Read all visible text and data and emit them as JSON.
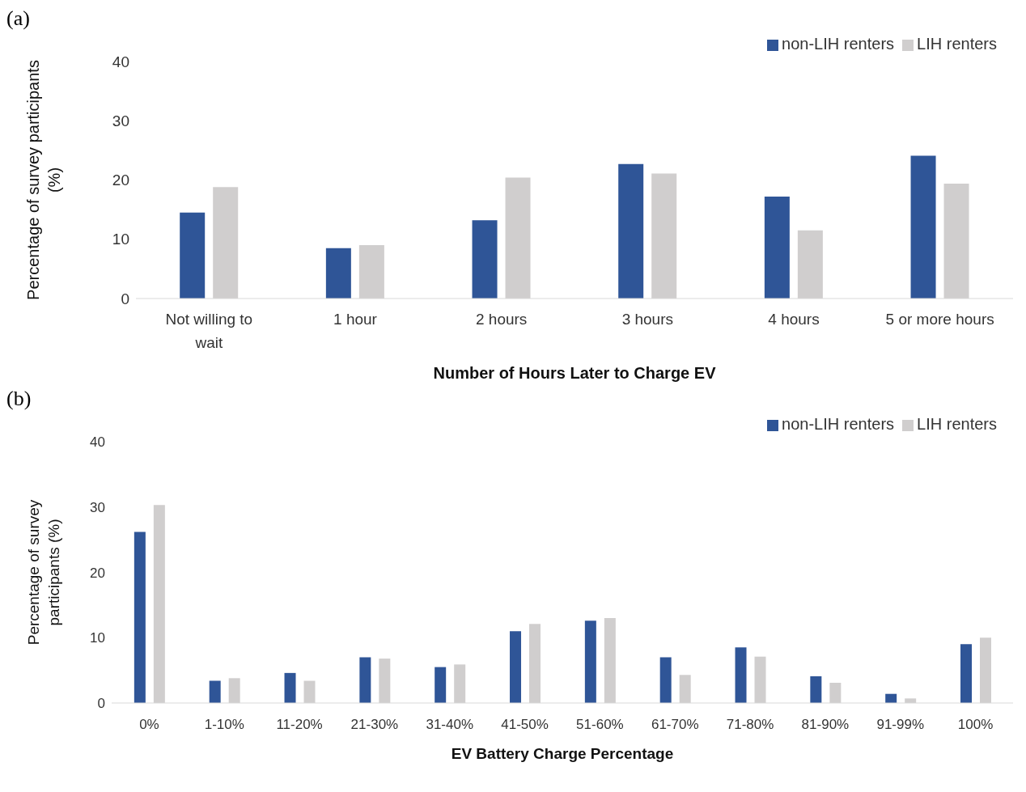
{
  "chart_data": [
    {
      "type": "bar",
      "title": "(a)",
      "xlabel": "Number of Hours Later to Charge EV",
      "ylabel": "Percentage of survey participants (%)",
      "categories": [
        "Not willing to wait",
        "1 hour",
        "2 hours",
        "3 hours",
        "4 hours",
        "5 or more hours"
      ],
      "series": [
        {
          "name": "non-LIH renters",
          "color": "#2f5597",
          "values": [
            14.5,
            8.5,
            13.2,
            22.7,
            17.2,
            24.1
          ]
        },
        {
          "name": "LIH renters",
          "color": "#d0cece",
          "values": [
            18.8,
            9.0,
            20.4,
            21.1,
            11.5,
            19.4
          ]
        }
      ],
      "ylim": [
        0,
        40
      ],
      "yticks": [
        0,
        10,
        20,
        30,
        40
      ],
      "grid": false,
      "legend": "top right"
    },
    {
      "type": "bar",
      "title": "(b)",
      "xlabel": "EV Battery Charge Percentage",
      "ylabel": "Percentage of survey participants (%)",
      "categories": [
        "0%",
        "1-10%",
        "11-20%",
        "21-30%",
        "31-40%",
        "41-50%",
        "51-60%",
        "61-70%",
        "71-80%",
        "81-90%",
        "91-99%",
        "100%"
      ],
      "series": [
        {
          "name": "non-LIH renters",
          "color": "#2f5597",
          "values": [
            26.2,
            3.4,
            4.6,
            7.0,
            5.5,
            11.0,
            12.6,
            7.0,
            8.5,
            4.1,
            1.4,
            9.0
          ]
        },
        {
          "name": "LIH renters",
          "color": "#d0cece",
          "values": [
            30.3,
            3.8,
            3.4,
            6.8,
            5.9,
            12.1,
            13.0,
            4.3,
            7.1,
            3.1,
            0.7,
            10.0
          ]
        }
      ],
      "ylim": [
        0,
        40
      ],
      "yticks": [
        0,
        10,
        20,
        30,
        40
      ],
      "grid": false,
      "legend": "top right"
    }
  ]
}
